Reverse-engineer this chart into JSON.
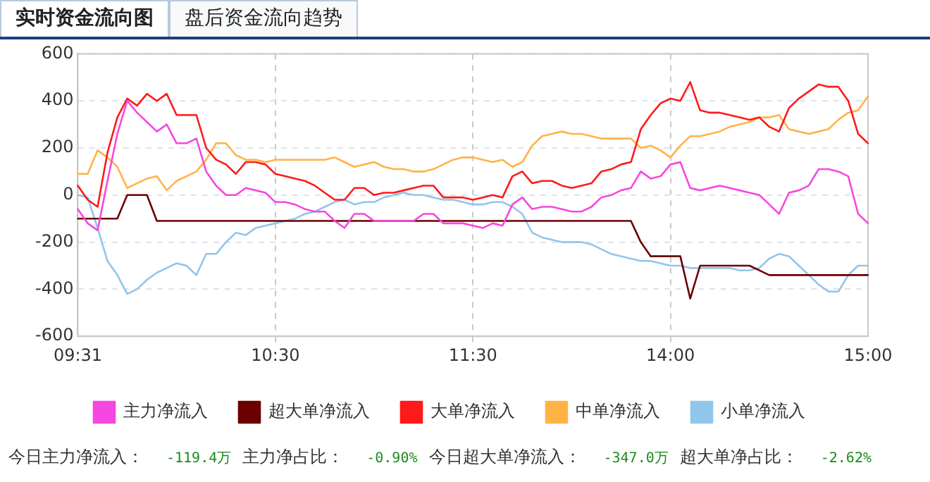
{
  "chart_data": {
    "type": "line",
    "annotations": [
      "实时资金流向图",
      "盘后资金流向趋势",
      "今日主力净流入：",
      "-119.4万",
      "主力净占比：",
      "-0.90%",
      "今日超大单净流入：",
      "-347.0万",
      "超大单净占比：",
      "-2.62%"
    ],
    "categories": [
      "09:31",
      null,
      null,
      null,
      null,
      null,
      null,
      null,
      null,
      null,
      null,
      null,
      null,
      null,
      null,
      null,
      null,
      null,
      null,
      null,
      "10:30",
      null,
      null,
      null,
      null,
      null,
      null,
      null,
      null,
      null,
      null,
      null,
      null,
      null,
      null,
      null,
      null,
      null,
      null,
      null,
      "11:30",
      null,
      null,
      null,
      null,
      null,
      null,
      null,
      null,
      null,
      null,
      null,
      null,
      null,
      null,
      null,
      null,
      null,
      null,
      null,
      "14:00",
      null,
      null,
      null,
      null,
      null,
      null,
      null,
      null,
      null,
      null,
      null,
      null,
      null,
      null,
      null,
      null,
      null,
      null,
      null,
      "15:00"
    ],
    "series": [
      {
        "name": "主力净流入",
        "color": "#f548e0",
        "values": [
          -60,
          -120,
          -150,
          60,
          260,
          400,
          350,
          310,
          270,
          300,
          220,
          220,
          240,
          100,
          40,
          0,
          0,
          30,
          20,
          10,
          -30,
          -30,
          -40,
          -60,
          -70,
          -70,
          -110,
          -140,
          -80,
          -80,
          -110,
          -110,
          -110,
          -110,
          -110,
          -80,
          -80,
          -120,
          -120,
          -120,
          -130,
          -140,
          -120,
          -130,
          -40,
          -10,
          -60,
          -50,
          -50,
          -60,
          -70,
          -70,
          -50,
          -10,
          0,
          20,
          30,
          100,
          70,
          80,
          130,
          140,
          30,
          20,
          30,
          40,
          30,
          20,
          10,
          0,
          -40,
          -80,
          10,
          20,
          40,
          110,
          110,
          100,
          80,
          -80,
          -120
        ]
      },
      {
        "name": "超大单净流入",
        "color": "#6b0000",
        "values": [
          -100,
          -100,
          -100,
          -100,
          -100,
          0,
          0,
          0,
          -110,
          -110,
          -110,
          -110,
          -110,
          -110,
          -110,
          -110,
          -110,
          -110,
          -110,
          -110,
          -110,
          -110,
          -110,
          -110,
          -110,
          -110,
          -110,
          -110,
          -110,
          -110,
          -110,
          -110,
          -110,
          -110,
          -110,
          -110,
          -110,
          -110,
          -110,
          -110,
          -110,
          -110,
          -110,
          -110,
          -110,
          -110,
          -110,
          -110,
          -110,
          -110,
          -110,
          -110,
          -110,
          -110,
          -110,
          -110,
          -110,
          -200,
          -260,
          -260,
          -260,
          -260,
          -440,
          -300,
          -300,
          -300,
          -300,
          -300,
          -300,
          -320,
          -340,
          -340,
          -340,
          -340,
          -340,
          -340,
          -340,
          -340,
          -340,
          -340,
          -340
        ]
      },
      {
        "name": "大单净流入",
        "color": "#ff1a1a",
        "values": [
          40,
          -20,
          -50,
          180,
          330,
          410,
          380,
          430,
          400,
          430,
          340,
          340,
          340,
          200,
          150,
          130,
          90,
          140,
          140,
          130,
          90,
          80,
          70,
          60,
          40,
          10,
          -20,
          -20,
          30,
          30,
          0,
          10,
          10,
          20,
          30,
          40,
          40,
          -10,
          -10,
          -10,
          -20,
          -10,
          0,
          -10,
          80,
          100,
          50,
          60,
          60,
          40,
          30,
          40,
          50,
          100,
          110,
          130,
          140,
          280,
          340,
          390,
          410,
          400,
          480,
          360,
          350,
          350,
          340,
          330,
          320,
          330,
          290,
          270,
          370,
          410,
          440,
          470,
          460,
          460,
          400,
          260,
          220
        ]
      },
      {
        "name": "中单净流入",
        "color": "#ffb347",
        "values": [
          90,
          90,
          190,
          160,
          120,
          30,
          50,
          70,
          80,
          20,
          60,
          80,
          100,
          150,
          220,
          220,
          170,
          150,
          150,
          140,
          150,
          150,
          150,
          150,
          150,
          150,
          160,
          140,
          120,
          130,
          140,
          120,
          110,
          110,
          100,
          100,
          110,
          130,
          150,
          160,
          160,
          150,
          140,
          150,
          120,
          140,
          210,
          250,
          260,
          270,
          260,
          260,
          250,
          240,
          240,
          240,
          240,
          200,
          210,
          190,
          160,
          210,
          250,
          250,
          260,
          270,
          290,
          300,
          310,
          330,
          330,
          340,
          280,
          270,
          260,
          270,
          280,
          320,
          350,
          360,
          420
        ]
      },
      {
        "name": "小单净流入",
        "color": "#92c5ec",
        "values": [
          0,
          -10,
          -140,
          -280,
          -340,
          -420,
          -400,
          -360,
          -330,
          -310,
          -290,
          -300,
          -340,
          -250,
          -250,
          -200,
          -160,
          -170,
          -140,
          -130,
          -120,
          -110,
          -100,
          -80,
          -70,
          -50,
          -30,
          -20,
          -40,
          -30,
          -30,
          -10,
          0,
          10,
          0,
          0,
          -10,
          -20,
          -20,
          -30,
          -40,
          -40,
          -30,
          -30,
          -50,
          -80,
          -160,
          -180,
          -190,
          -200,
          -200,
          -200,
          -210,
          -230,
          -250,
          -260,
          -270,
          -280,
          -280,
          -290,
          -300,
          -300,
          -310,
          -310,
          -310,
          -310,
          -310,
          -320,
          -320,
          -310,
          -270,
          -250,
          -260,
          -300,
          -340,
          -380,
          -410,
          -410,
          -340,
          -300,
          -300
        ]
      }
    ],
    "ylim": [
      -600,
      600
    ],
    "yticks": [
      -600,
      -400,
      -200,
      0,
      200,
      400,
      600
    ],
    "grid": true,
    "legend": "bottom",
    "marker": "none",
    "line_style": "solid"
  }
}
